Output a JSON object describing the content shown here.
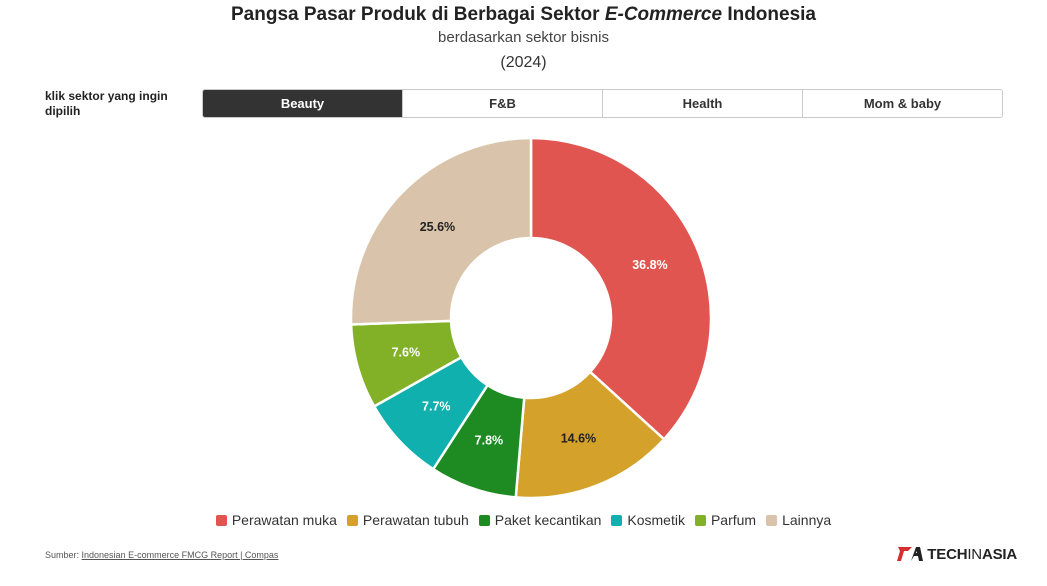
{
  "header": {
    "title_prefix": "Pangsa Pasar Produk di Berbagai Sektor",
    "title_italic": "E-Commerce",
    "title_suffix": "Indonesia",
    "subtitle": "berdasarkan sektor bisnis",
    "year": "(2024)"
  },
  "selector": {
    "prompt": "klik sektor yang ingin dipilih",
    "tabs": [
      "Beauty",
      "F&B",
      "Health",
      "Mom & baby"
    ],
    "active_tab": "Beauty"
  },
  "chart_data": {
    "type": "pie",
    "donut": true,
    "categories": [
      "Perawatan muka",
      "Perawatan tubuh",
      "Paket kecantikan",
      "Kosmetik",
      "Parfum",
      "Lainnya"
    ],
    "values": [
      36.8,
      14.6,
      7.8,
      7.7,
      7.6,
      25.6
    ],
    "value_labels": [
      "36.8%",
      "14.6%",
      "7.8%",
      "7.7%",
      "7.6%",
      "25.6%"
    ],
    "colors": [
      "#e05550",
      "#d4a22a",
      "#1e8a22",
      "#0fb0ad",
      "#82b027",
      "#d9c4ab"
    ],
    "label_colors": [
      "#ffffff",
      "#222222",
      "#ffffff",
      "#ffffff",
      "#ffffff",
      "#222222"
    ],
    "legend_position": "bottom"
  },
  "footer": {
    "source_label": "Sumber:",
    "source_text": "Indonesian E-commerce FMCG Report | Compas",
    "logo_bold": "TECH",
    "logo_thin": "IN",
    "logo_bold2": "ASIA"
  }
}
